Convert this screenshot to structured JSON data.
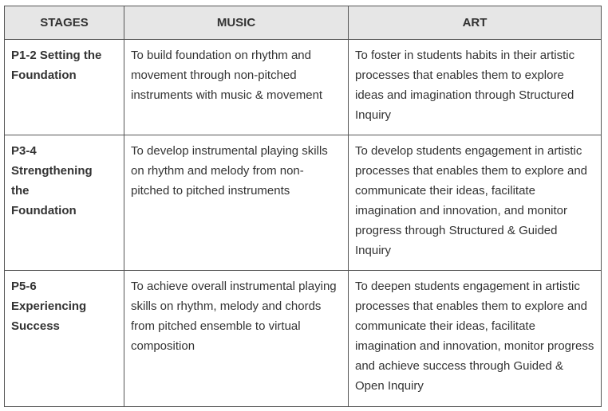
{
  "table": {
    "headers": [
      "STAGES",
      "MUSIC",
      "ART"
    ],
    "rows": [
      {
        "stage": "P1-2 Setting the Foundation",
        "music": "To build foundation on rhythm and movement through non-pitched instruments with music & movement",
        "art": "To foster in students habits in their artistic processes that enables them to explore ideas and imagination through Structured Inquiry"
      },
      {
        "stage": "P3-4 Strengthening the Foundation",
        "music": "To develop instrumental playing skills on rhythm and melody from non-pitched to pitched instruments",
        "art": "To develop students engagement in artistic processes that enables them to explore and communicate their ideas, facilitate imagination and innovation, and monitor progress through Structured & Guided Inquiry"
      },
      {
        "stage": "P5-6 Experiencing Success",
        "music": "To achieve overall instrumental playing skills on rhythm, melody and chords from pitched ensemble to virtual composition",
        "art": "To deepen students engagement in artistic processes that enables them to explore and communicate their ideas, facilitate imagination and innovation, monitor progress and achieve success through Guided & Open Inquiry"
      }
    ]
  }
}
